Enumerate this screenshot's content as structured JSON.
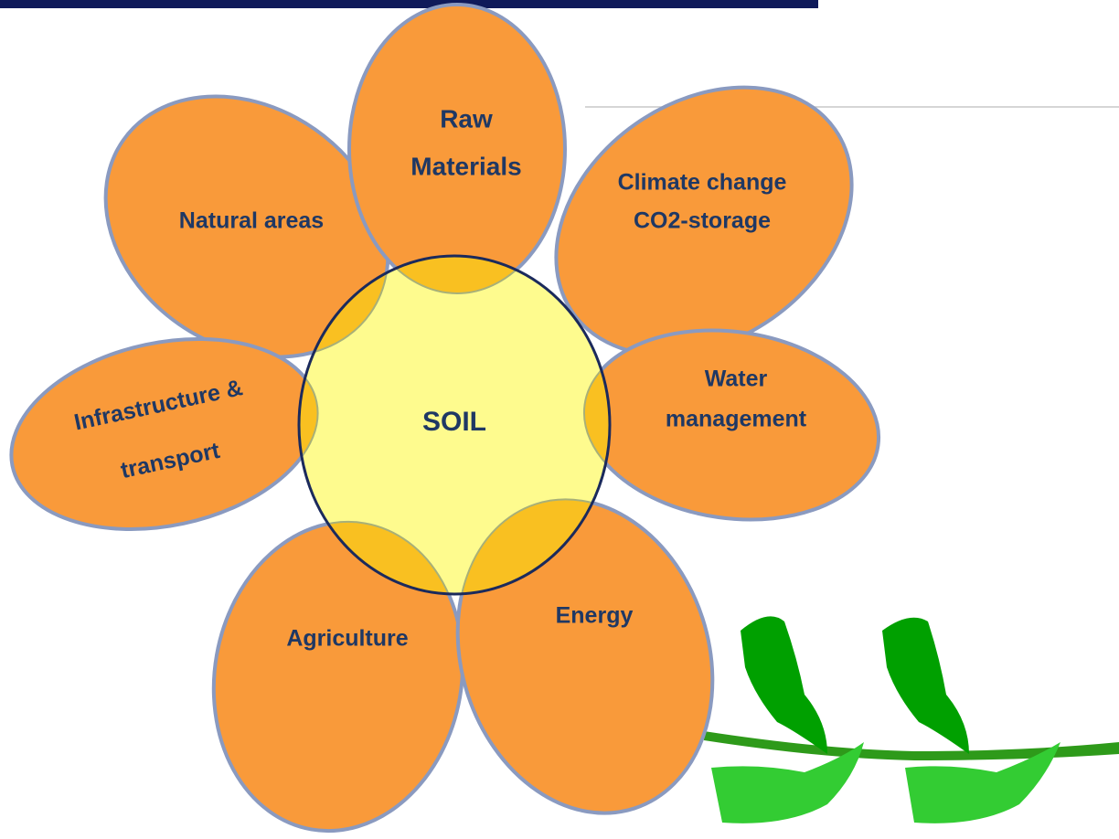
{
  "center": {
    "label": "SOIL"
  },
  "petals": [
    {
      "lines": [
        "Raw",
        "Materials"
      ]
    },
    {
      "lines": [
        "Natural areas"
      ]
    },
    {
      "lines": [
        "Climate change",
        "CO2-storage"
      ]
    },
    {
      "lines": [
        "Infrastructure &",
        "transport"
      ]
    },
    {
      "lines": [
        "Water",
        "management"
      ]
    },
    {
      "lines": [
        "Agriculture"
      ]
    },
    {
      "lines": [
        "Energy"
      ]
    }
  ]
}
